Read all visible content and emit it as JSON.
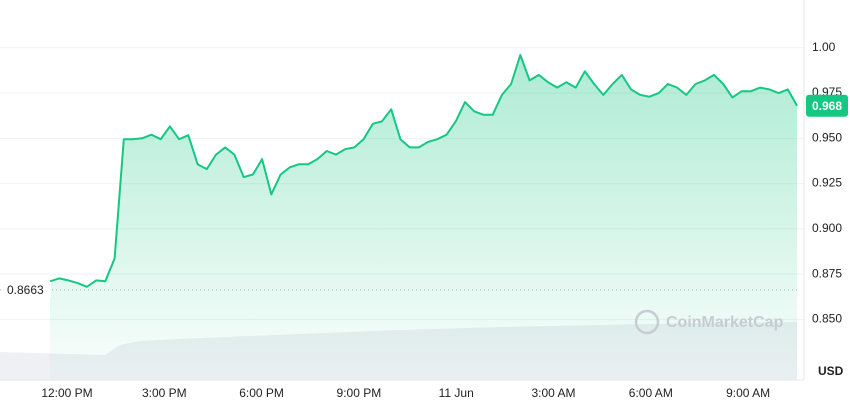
{
  "chart_data": {
    "type": "line",
    "values": [
      0.871,
      0.8726,
      0.8715,
      0.87,
      0.868,
      0.8715,
      0.871,
      0.8836,
      0.9495,
      0.9495,
      0.95,
      0.952,
      0.9495,
      0.9566,
      0.9495,
      0.9517,
      0.9357,
      0.933,
      0.941,
      0.945,
      0.941,
      0.9286,
      0.93,
      0.9385,
      0.919,
      0.93,
      0.934,
      0.9357,
      0.9357,
      0.9385,
      0.943,
      0.941,
      0.944,
      0.945,
      0.9495,
      0.958,
      0.9594,
      0.966,
      0.9495,
      0.945,
      0.945,
      0.948,
      0.9495,
      0.952,
      0.9594,
      0.97,
      0.9649,
      0.963,
      0.963,
      0.974,
      0.98,
      0.996,
      0.982,
      0.985,
      0.981,
      0.978,
      0.981,
      0.978,
      0.987,
      0.98,
      0.974,
      0.98,
      0.985,
      0.977,
      0.974,
      0.973,
      0.975,
      0.98,
      0.978,
      0.974,
      0.98,
      0.982,
      0.985,
      0.98,
      0.9726,
      0.976,
      0.976,
      0.978,
      0.977,
      0.975,
      0.977,
      0.968
    ],
    "color": "#16c784",
    "xtick_labels": [
      "12:00 PM",
      "3:00 PM",
      "6:00 PM",
      "9:00 PM",
      "11 Jun",
      "3:00 AM",
      "6:00 AM",
      "9:00 AM"
    ],
    "ylim": [
      0.8165,
      1.0264
    ],
    "yticks": [
      {
        "value": 0.85,
        "label": "0.850"
      },
      0.875,
      {
        "value": 0.9,
        "label": "0.900"
      },
      0.925,
      {
        "value": 0.95,
        "label": "0.950"
      },
      0.975,
      {
        "value": 1,
        "label": "1.00"
      }
    ],
    "grid": true,
    "reference": 0.8663,
    "last_price": 0.968,
    "currency": "USD",
    "watermark": "CoinMarketCap"
  }
}
